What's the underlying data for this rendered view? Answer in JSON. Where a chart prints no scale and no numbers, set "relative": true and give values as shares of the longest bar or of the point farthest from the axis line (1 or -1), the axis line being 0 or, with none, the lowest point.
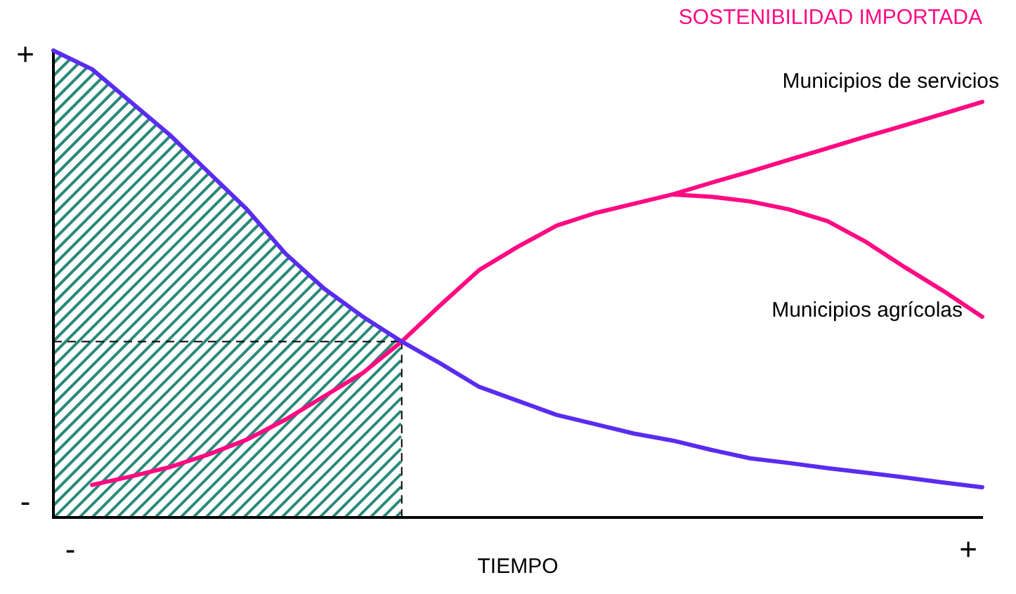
{
  "chart_data": {
    "type": "line",
    "title": "SOSTENIBILIDAD IMPORTADA",
    "xlabel": "TIEMPO",
    "relative": true,
    "annotations": [
      "+",
      "-",
      "-",
      "+"
    ],
    "grid": false,
    "legend": false,
    "marker": "none",
    "line_style": "solid",
    "categories": [
      null,
      null,
      null,
      null,
      null,
      null,
      null,
      null,
      null,
      null,
      null,
      null,
      null,
      null,
      null,
      null,
      null,
      null,
      null,
      null,
      null,
      null,
      null,
      null,
      null
    ],
    "series": [
      {
        "color": "#5a2cf0",
        "values": [
          1,
          0.96,
          0.89,
          0.82,
          0.74,
          0.66,
          0.565,
          0.49,
          0.43,
          0.377,
          0.33,
          0.28,
          0.25,
          0.22,
          0.2,
          0.18,
          0.165,
          0.145,
          0.127,
          0.117,
          0.106,
          0.096,
          0.086,
          0.075,
          0.065
        ]
      },
      {
        "name": "Municipios de servicios",
        "color": "#ff0a82",
        "values": [
          null,
          0.07,
          0.088,
          0.108,
          0.135,
          0.167,
          0.21,
          0.26,
          0.31,
          0.377,
          0.455,
          0.53,
          0.58,
          0.625,
          0.652,
          0.672,
          0.692,
          0.717,
          0.741,
          0.766,
          0.791,
          0.816,
          0.84,
          0.865,
          0.89
        ]
      },
      {
        "name": "Municipios agrícolas",
        "color": "#ff0a82",
        "values": [
          null,
          null,
          null,
          null,
          null,
          null,
          null,
          null,
          null,
          null,
          null,
          null,
          null,
          null,
          null,
          null,
          0.692,
          0.687,
          0.677,
          0.66,
          0.635,
          0.59,
          0.536,
          0.485,
          0.43
        ]
      }
    ]
  }
}
